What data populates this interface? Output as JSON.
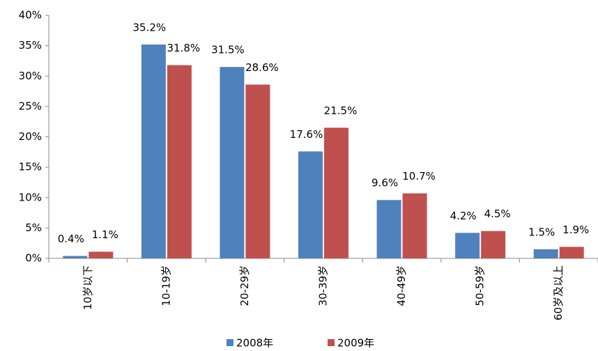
{
  "chart_data": {
    "type": "bar",
    "categories": [
      "10岁以下",
      "10-19岁",
      "20-29岁",
      "30-39岁",
      "40-49岁",
      "50-59岁",
      "60岁及以上"
    ],
    "series": [
      {
        "name": "2008年",
        "color": "#4f81bd",
        "values": [
          0.4,
          35.2,
          31.5,
          17.6,
          9.6,
          4.2,
          1.5
        ],
        "value_labels": [
          "0.4%",
          "35.2%",
          "31.5%",
          "17.6%",
          "9.6%",
          "4.2%",
          "1.5%"
        ]
      },
      {
        "name": "2009年",
        "color": "#c0504d",
        "values": [
          1.1,
          31.8,
          28.6,
          21.5,
          10.7,
          4.5,
          1.9
        ],
        "value_labels": [
          "1.1%",
          "31.8%",
          "28.6%",
          "21.5%",
          "10.7%",
          "4.5%",
          "1.9%"
        ]
      }
    ],
    "ylim": [
      0,
      40
    ],
    "yticks": [
      {
        "value": 0,
        "label": "0%"
      },
      {
        "value": 5,
        "label": "5%"
      },
      {
        "value": 10,
        "label": "10%"
      },
      {
        "value": 15,
        "label": "15%"
      },
      {
        "value": 20,
        "label": "20%"
      },
      {
        "value": 25,
        "label": "25%"
      },
      {
        "value": 30,
        "label": "30%"
      },
      {
        "value": 35,
        "label": "35%"
      },
      {
        "value": 40,
        "label": "40%"
      }
    ],
    "legend": "bottom"
  }
}
